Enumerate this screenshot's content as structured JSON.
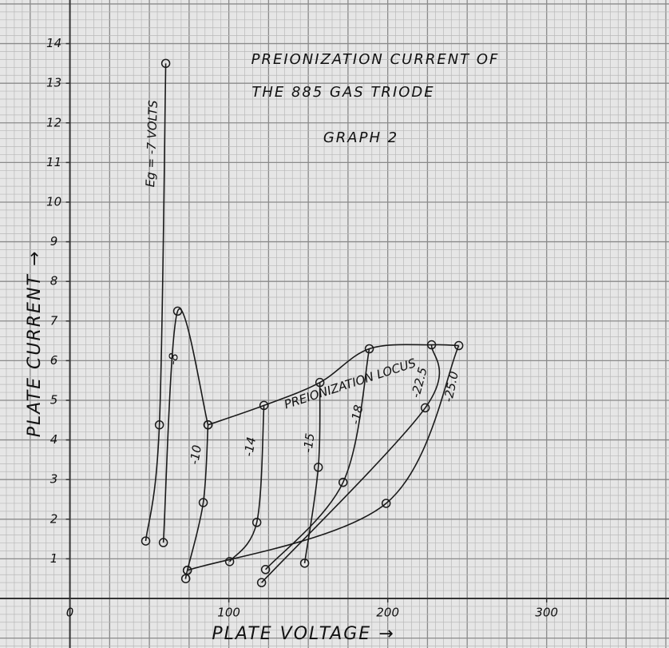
{
  "chart_data": {
    "type": "line",
    "title": [
      "PREIONIZATION CURRENT OF",
      "THE 885 GAS TRIODE"
    ],
    "subtitle": "GRAPH 2",
    "x_label": "PLATE VOLTAGE →",
    "y_label": "PLATE CURRENT →",
    "xlim": [
      -44,
      377
    ],
    "ylim": [
      -1.25,
      15.1
    ],
    "xticks": [
      0,
      100,
      200,
      300
    ],
    "yticks": [
      1,
      2,
      3,
      4,
      5,
      6,
      7,
      8,
      9,
      10,
      11,
      12,
      13,
      14
    ],
    "grid": true,
    "color": "#1a1a1a",
    "series": [
      {
        "name": "Eg = -7 VOLTS",
        "x": [
          47.7,
          56.3,
          60.3
        ],
        "values": [
          1.45,
          4.38,
          13.5
        ],
        "markers": true
      },
      {
        "name": "-8",
        "x": [
          58.8,
          67.8,
          86.9
        ],
        "values": [
          1.41,
          7.25,
          4.38
        ],
        "markers": true
      },
      {
        "name": "-10",
        "x": [
          72.9,
          73.9,
          83.9,
          86.9
        ],
        "values": [
          0.5,
          0.71,
          2.42,
          4.38
        ],
        "markers": true
      },
      {
        "name": "-14",
        "x": [
          100.5,
          117.6,
          122.1
        ],
        "values": [
          0.93,
          1.92,
          4.87
        ],
        "markers": true
      },
      {
        "name": "-15",
        "x": [
          147.7,
          156.3,
          157.3
        ],
        "values": [
          0.89,
          3.31,
          5.45
        ],
        "markers": true
      },
      {
        "name": "-18",
        "x": [
          123.1,
          171.9,
          188.4
        ],
        "values": [
          0.73,
          2.93,
          6.3
        ],
        "markers": true
      },
      {
        "name": "-22.5",
        "x": [
          120.6,
          223.6,
          227.6
        ],
        "values": [
          0.4,
          4.81,
          6.4
        ],
        "markers": true
      },
      {
        "name": "-25.0",
        "x": [
          73.9,
          199,
          244.7
        ],
        "values": [
          0.71,
          2.4,
          6.38
        ],
        "markers": true
      },
      {
        "name": "PREIONIZATION LOCUS",
        "x": [
          86.9,
          122.1,
          157.3,
          188.4,
          227.6,
          244.7
        ],
        "values": [
          4.38,
          4.87,
          5.45,
          6.3,
          6.4,
          6.38
        ],
        "markers": false
      }
    ]
  }
}
